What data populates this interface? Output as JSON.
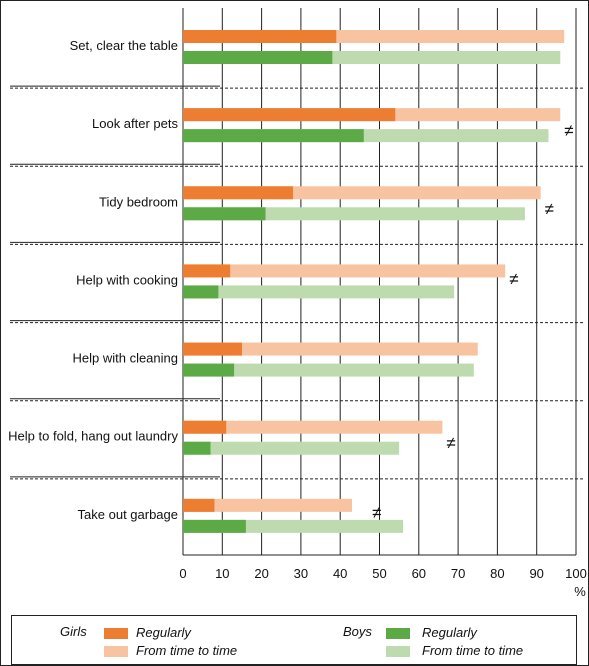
{
  "chart_data": {
    "type": "bar",
    "orientation": "horizontal",
    "categories": [
      "Set, clear the table",
      "Look after pets",
      "Tidy bedroom",
      "Help with cooking",
      "Help with cleaning",
      "Help to fold, hang out laundry",
      "Take out garbage"
    ],
    "series": [
      {
        "name": "Girls Regularly",
        "values": [
          39,
          54,
          28,
          12,
          15,
          11,
          8
        ]
      },
      {
        "name": "Girls From time to time",
        "values": [
          97,
          96,
          91,
          82,
          75,
          66,
          43
        ]
      },
      {
        "name": "Boys Regularly",
        "values": [
          38,
          46,
          21,
          9,
          13,
          7,
          16
        ]
      },
      {
        "name": "Boys From time to time",
        "values": [
          96,
          93,
          87,
          69,
          74,
          55,
          56
        ]
      }
    ],
    "neq_markers": [
      false,
      true,
      true,
      true,
      false,
      true,
      true
    ],
    "neq_symbol": "≠",
    "xlim": [
      0,
      100
    ],
    "xticks": [
      "0",
      "10",
      "20",
      "30",
      "40",
      "50",
      "60",
      "70",
      "80",
      "90",
      "100"
    ],
    "xunit": "%",
    "grid": true,
    "legend_position": "bottom",
    "colors": {
      "girls_regular": "#ED7D31",
      "girls_time": "#F8C3A0",
      "boys_regular": "#5BAA46",
      "boys_time": "#BEDBAF"
    }
  },
  "legend": {
    "girls_label": "Girls",
    "boys_label": "Boys",
    "regularly": "Regularly",
    "from_time_to_time": "From time to time"
  }
}
